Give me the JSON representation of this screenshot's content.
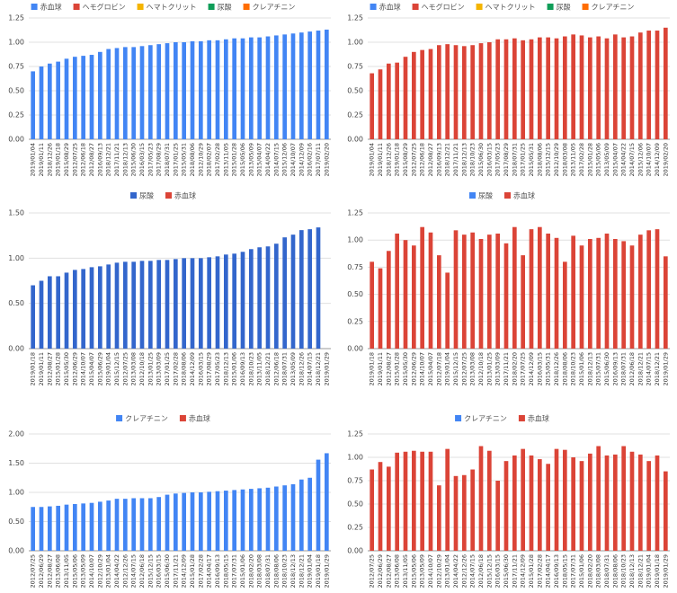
{
  "chart_data": [
    {
      "type": "bar",
      "legend": [
        {
          "name": "赤血球",
          "color": "#4285f4"
        },
        {
          "name": "ヘモグロビン",
          "color": "#db4437"
        },
        {
          "name": "ヘマトクリット",
          "color": "#f4b400"
        },
        {
          "name": "尿酸",
          "color": "#0f9d58"
        },
        {
          "name": "クレアチニン",
          "color": "#ff6d01"
        }
      ],
      "color": "#4285f4",
      "categories": [
        "2019/01/04",
        "2019/01/11",
        "2018/12/26",
        "2019/01/18",
        "2015/08/29",
        "2012/07/25",
        "2012/06/18",
        "2012/08/27",
        "2016/09/13",
        "2018/12/21",
        "2017/11/21",
        "2018/12/13",
        "2015/06/30",
        "2016/03/15",
        "2017/05/23",
        "2017/08/29",
        "2018/07/31",
        "2017/01/25",
        "2015/05/31",
        "2018/08/06",
        "2012/10/29",
        "2018/02/07",
        "2017/02/28",
        "2013/11/05",
        "2015/01/28",
        "2015/05/06",
        "2013/05/09",
        "2015/04/07",
        "2014/04/22",
        "2014/07/15",
        "2015/12/06",
        "2014/10/07",
        "2014/12/09",
        "2016/02/16",
        "2017/07/11",
        "2019/02/20"
      ],
      "values": [
        0.7,
        0.75,
        0.78,
        0.8,
        0.83,
        0.85,
        0.86,
        0.87,
        0.9,
        0.93,
        0.94,
        0.95,
        0.95,
        0.96,
        0.97,
        0.98,
        0.99,
        1.0,
        1.0,
        1.01,
        1.01,
        1.02,
        1.02,
        1.03,
        1.04,
        1.04,
        1.05,
        1.05,
        1.06,
        1.07,
        1.08,
        1.09,
        1.1,
        1.11,
        1.12,
        1.13
      ],
      "ylim": [
        0,
        1.25
      ],
      "yticks": [
        {
          "value": 0,
          "label": "0.00"
        },
        0.25,
        {
          "value": 0.5,
          "label": "0.50"
        },
        0.75,
        {
          "value": 1,
          "label": "1.00"
        },
        1.25
      ],
      "grid": true
    },
    {
      "type": "bar",
      "legend": [
        {
          "name": "赤血球",
          "color": "#4285f4"
        },
        {
          "name": "ヘモグロビン",
          "color": "#db4437"
        },
        {
          "name": "ヘマトクリット",
          "color": "#f4b400"
        },
        {
          "name": "尿酸",
          "color": "#0f9d58"
        },
        {
          "name": "クレアチニン",
          "color": "#ff6d01"
        }
      ],
      "color": "#db4437",
      "categories": [
        "2019/01/04",
        "2019/01/11",
        "2018/12/26",
        "2019/01/18",
        "2015/08/29",
        "2012/07/25",
        "2012/06/18",
        "2012/08/27",
        "2016/09/13",
        "2018/12/21",
        "2017/11/21",
        "2018/12/13",
        "2018/10/23",
        "2015/06/30",
        "2016/03/15",
        "2017/05/23",
        "2017/08/29",
        "2018/07/31",
        "2017/01/25",
        "2015/05/31",
        "2018/08/06",
        "2015/12/15",
        "2012/10/29",
        "2018/03/08",
        "2013/11/05",
        "2017/02/28",
        "2015/01/28",
        "2015/05/06",
        "2013/05/09",
        "2015/04/07",
        "2014/04/22",
        "2014/07/15",
        "2015/12/06",
        "2014/10/07",
        "2014/12/09",
        "2019/02/20"
      ],
      "values": [
        0.68,
        0.72,
        0.78,
        0.79,
        0.85,
        0.9,
        0.92,
        0.93,
        0.97,
        0.98,
        0.97,
        0.96,
        0.97,
        0.99,
        1.0,
        1.03,
        1.03,
        1.04,
        1.02,
        1.03,
        1.05,
        1.05,
        1.04,
        1.06,
        1.08,
        1.07,
        1.05,
        1.06,
        1.04,
        1.08,
        1.05,
        1.06,
        1.1,
        1.12,
        1.12,
        1.15
      ],
      "ylim": [
        0,
        1.25
      ],
      "yticks": [
        {
          "value": 0,
          "label": "0.00"
        },
        0.25,
        {
          "value": 0.5,
          "label": "0.50"
        },
        0.75,
        {
          "value": 1,
          "label": "1.00"
        },
        1.25
      ],
      "grid": true
    },
    {
      "type": "bar",
      "legend": [
        {
          "name": "尿酸",
          "color": "#3366cc"
        },
        {
          "name": "赤血球",
          "color": "#db4437"
        }
      ],
      "color": "#3366cc",
      "categories": [
        "2019/01/18",
        "2019/01/11",
        "2012/08/27",
        "2015/01/28",
        "2015/05/30",
        "2012/06/29",
        "2014/10/07",
        "2015/04/07",
        "2015/06/29",
        "2019/01/04",
        "2015/12/15",
        "2012/07/25",
        "2013/03/08",
        "2012/10/18",
        "2013/01/25",
        "2013/03/09",
        "2017/01/25",
        "2017/02/28",
        "2018/08/06",
        "2014/12/09",
        "2016/03/15",
        "2017/08/29",
        "2017/05/23",
        "2018/12/13",
        "2015/01/06",
        "2016/09/13",
        "2018/10/23",
        "2013/11/05",
        "2018/12/21",
        "2012/06/18",
        "2018/07/31",
        "2013/05/09",
        "2018/12/26",
        "2014/07/15",
        "2018/12/21",
        "2019/01/29"
      ],
      "values": [
        0.7,
        0.75,
        0.8,
        0.8,
        0.84,
        0.87,
        0.88,
        0.9,
        0.91,
        0.93,
        0.95,
        0.96,
        0.96,
        0.97,
        0.97,
        0.98,
        0.98,
        0.99,
        1.0,
        1.0,
        1.0,
        1.01,
        1.02,
        1.04,
        1.05,
        1.07,
        1.1,
        1.12,
        1.13,
        1.16,
        1.23,
        1.26,
        1.31,
        1.32,
        1.34,
        null
      ],
      "ylim": [
        0,
        1.5
      ],
      "yticks": [
        {
          "value": 0,
          "label": "0.00"
        },
        {
          "value": 0.5,
          "label": "0.50"
        },
        {
          "value": 1,
          "label": "1.00"
        },
        {
          "value": 1.5,
          "label": "1.50"
        }
      ],
      "grid": true
    },
    {
      "type": "bar",
      "legend": [
        {
          "name": "尿酸",
          "color": "#4285f4"
        },
        {
          "name": "赤血球",
          "color": "#db4437"
        }
      ],
      "color": "#db4437",
      "categories": [
        "2019/01/18",
        "2019/01/11",
        "2012/08/27",
        "2015/01/28",
        "2015/05/30",
        "2012/06/29",
        "2014/10/07",
        "2015/04/07",
        "2012/07/18",
        "2019/01/04",
        "2015/12/15",
        "2012/07/25",
        "2013/03/08",
        "2012/10/18",
        "2013/01/25",
        "2013/03/09",
        "2017/11/21",
        "2018/02/20",
        "2017/07/25",
        "2014/12/09",
        "2016/03/15",
        "2015/05/31",
        "2018/12/26",
        "2018/08/06",
        "2018/10/23",
        "2015/01/06",
        "2018/12/13",
        "2015/07/31",
        "2015/06/30",
        "2016/09/13",
        "2018/07/31",
        "2012/06/18",
        "2018/12/21",
        "2014/07/15",
        "2018/12/21",
        "2019/01/29"
      ],
      "values": [
        0.8,
        0.74,
        0.9,
        1.06,
        1.0,
        0.95,
        1.12,
        1.07,
        0.86,
        0.7,
        1.09,
        1.05,
        1.07,
        1.01,
        1.05,
        1.06,
        0.97,
        1.12,
        0.86,
        1.1,
        1.12,
        1.06,
        1.02,
        0.8,
        1.04,
        0.95,
        1.01,
        1.02,
        1.06,
        1.01,
        0.99,
        0.95,
        1.05,
        1.09,
        1.1,
        0.85
      ],
      "ylim": [
        0,
        1.25
      ],
      "yticks": [
        {
          "value": 0,
          "label": "0.00"
        },
        0.25,
        {
          "value": 0.5,
          "label": "0.50"
        },
        0.75,
        {
          "value": 1,
          "label": "1.00"
        },
        1.25
      ],
      "grid": true
    },
    {
      "type": "bar",
      "legend": [
        {
          "name": "クレアチニン",
          "color": "#4285f4"
        },
        {
          "name": "赤血球",
          "color": "#db4437"
        }
      ],
      "color": "#4285f4",
      "categories": [
        "2012/07/25",
        "2012/06/29",
        "2012/08/27",
        "2013/06/08",
        "2013/11/05",
        "2015/05/06",
        "2013/05/09",
        "2014/10/07",
        "2012/10/29",
        "2013/01/04",
        "2014/04/22",
        "2012/12/26",
        "2014/07/15",
        "2012/06/18",
        "2015/12/15",
        "2016/03/15",
        "2015/06/30",
        "2017/11/21",
        "2014/12/09",
        "2015/01/28",
        "2017/02/28",
        "2014/04/17",
        "2016/09/13",
        "2018/05/15",
        "2017/07/31",
        "2015/01/06",
        "2018/02/20",
        "2018/03/08",
        "2018/07/31",
        "2018/08/06",
        "2018/10/23",
        "2018/12/13",
        "2018/12/21",
        "2019/01/04",
        "2019/01/18",
        "2019/01/29"
      ],
      "values": [
        0.75,
        0.75,
        0.76,
        0.77,
        0.79,
        0.8,
        0.81,
        0.82,
        0.84,
        0.86,
        0.89,
        0.89,
        0.9,
        0.9,
        0.9,
        0.92,
        0.96,
        0.98,
        0.99,
        1.0,
        1.0,
        1.01,
        1.02,
        1.03,
        1.04,
        1.05,
        1.06,
        1.07,
        1.08,
        1.1,
        1.12,
        1.14,
        1.22,
        1.25,
        1.56,
        1.67
      ],
      "ylim": [
        0,
        2
      ],
      "yticks": [
        {
          "value": 0,
          "label": "0.00"
        },
        {
          "value": 0.5,
          "label": "0.50"
        },
        {
          "value": 1,
          "label": "1.00"
        },
        {
          "value": 1.5,
          "label": "1.50"
        },
        {
          "value": 2,
          "label": "2.00"
        }
      ],
      "grid": true
    },
    {
      "type": "bar",
      "legend": [
        {
          "name": "クレアチニン",
          "color": "#4285f4"
        },
        {
          "name": "赤血球",
          "color": "#db4437"
        }
      ],
      "color": "#db4437",
      "categories": [
        "2012/07/25",
        "2012/06/29",
        "2012/08/27",
        "2013/06/08",
        "2013/11/05",
        "2015/05/06",
        "2013/05/09",
        "2014/10/07",
        "2012/10/29",
        "2013/01/04",
        "2014/04/22",
        "2012/12/26",
        "2014/07/15",
        "2012/06/18",
        "2015/12/15",
        "2016/03/15",
        "2015/06/30",
        "2017/11/21",
        "2014/12/09",
        "2015/01/28",
        "2017/02/28",
        "2014/04/17",
        "2016/09/13",
        "2018/05/15",
        "2017/07/31",
        "2015/01/06",
        "2018/02/20",
        "2018/03/08",
        "2018/07/31",
        "2018/08/06",
        "2018/10/23",
        "2018/12/13",
        "2018/12/21",
        "2019/01/04",
        "2019/01/18",
        "2019/01/29"
      ],
      "values": [
        0.87,
        0.95,
        0.9,
        1.05,
        1.06,
        1.07,
        1.06,
        1.06,
        0.7,
        1.09,
        0.8,
        0.81,
        0.87,
        1.12,
        1.07,
        0.75,
        0.96,
        1.02,
        1.09,
        1.02,
        0.98,
        0.93,
        1.09,
        1.08,
        1.0,
        0.96,
        1.04,
        1.12,
        1.02,
        1.03,
        1.12,
        1.06,
        1.03,
        0.96,
        1.02,
        0.85
      ],
      "ylim": [
        0,
        1.25
      ],
      "yticks": [
        {
          "value": 0,
          "label": "0.00"
        },
        0.25,
        {
          "value": 0.5,
          "label": "0.50"
        },
        0.75,
        {
          "value": 1,
          "label": "1.00"
        },
        1.25
      ],
      "grid": true
    }
  ]
}
